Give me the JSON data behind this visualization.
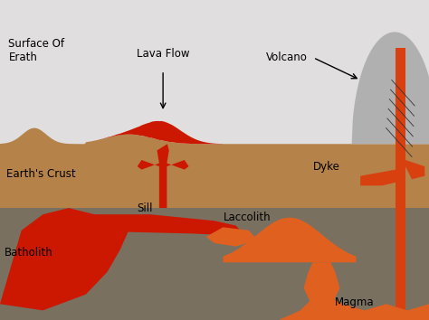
{
  "fig_width": 4.74,
  "fig_height": 3.54,
  "dpi": 100,
  "bg_sky": "#e0dede",
  "bg_crust": "#b5824a",
  "bg_mantle": "#7a7060",
  "labels": {
    "surface_of_earth": "Surface Of\nErath",
    "lava_flow": "Lava Flow",
    "volcano": "Volcano",
    "earths_crust": "Earth's Crust",
    "dyke": "Dyke",
    "sill": "Sill",
    "batholith": "Batholith",
    "laccolith": "Laccolith",
    "magma": "Magma"
  },
  "red_dark": "#cc1800",
  "orange_lava": "#d94010",
  "orange_magma": "#e06020",
  "volcano_gray": "#b0b0b0",
  "volcano_lines": "#333333"
}
